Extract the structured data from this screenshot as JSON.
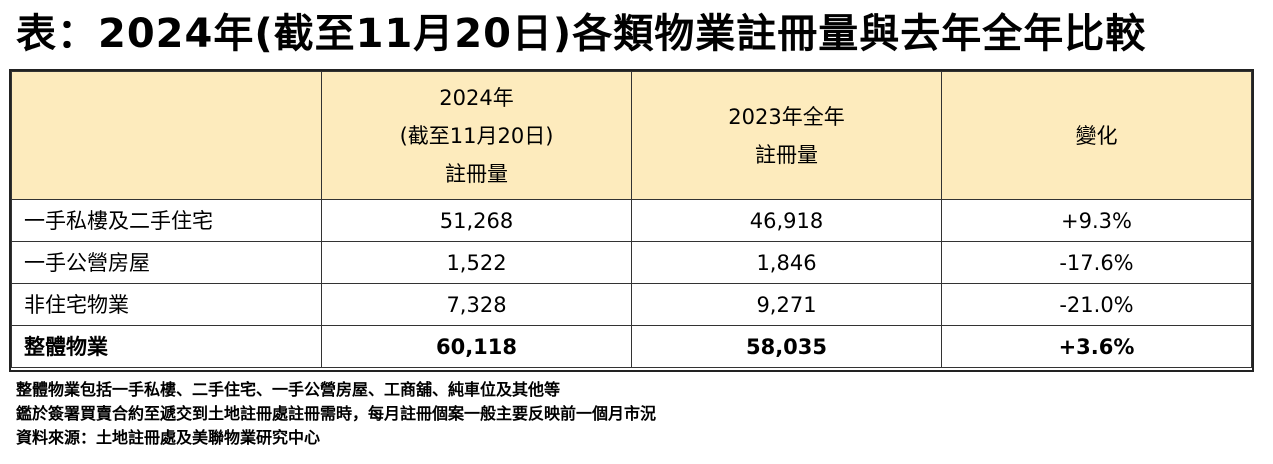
{
  "title": "表：2024年(截至11月20日)各類物業註冊量與去年全年比較",
  "table": {
    "headers": [
      "",
      [
        "2024年",
        "(截至11月20日)",
        "註冊量"
      ],
      [
        "2023年全年",
        "註冊量"
      ],
      [
        "變化"
      ]
    ],
    "rows": [
      {
        "label": "一手私樓及二手住宅",
        "v2024": "51,268",
        "v2023": "46,918",
        "change": "+9.3%"
      },
      {
        "label": "一手公營房屋",
        "v2024": "1,522",
        "v2023": "1,846",
        "change": "-17.6%"
      },
      {
        "label": "非住宅物業",
        "v2024": "7,328",
        "v2023": "9,271",
        "change": "-21.0%"
      },
      {
        "label": "整體物業",
        "v2024": "60,118",
        "v2023": "58,035",
        "change": "+3.6%"
      }
    ]
  },
  "notes": [
    "整體物業包括一手私樓、二手住宅、一手公營房屋、工商舖、純車位及其他等",
    "鑑於簽署買賣合約至遞交到土地註冊處註冊需時，每月註冊個案一般主要反映前一個月市況",
    "資料來源：土地註冊處及美聯物業研究中心"
  ],
  "colors": {
    "header_bg": "#fdebbd",
    "border": "#333333"
  }
}
